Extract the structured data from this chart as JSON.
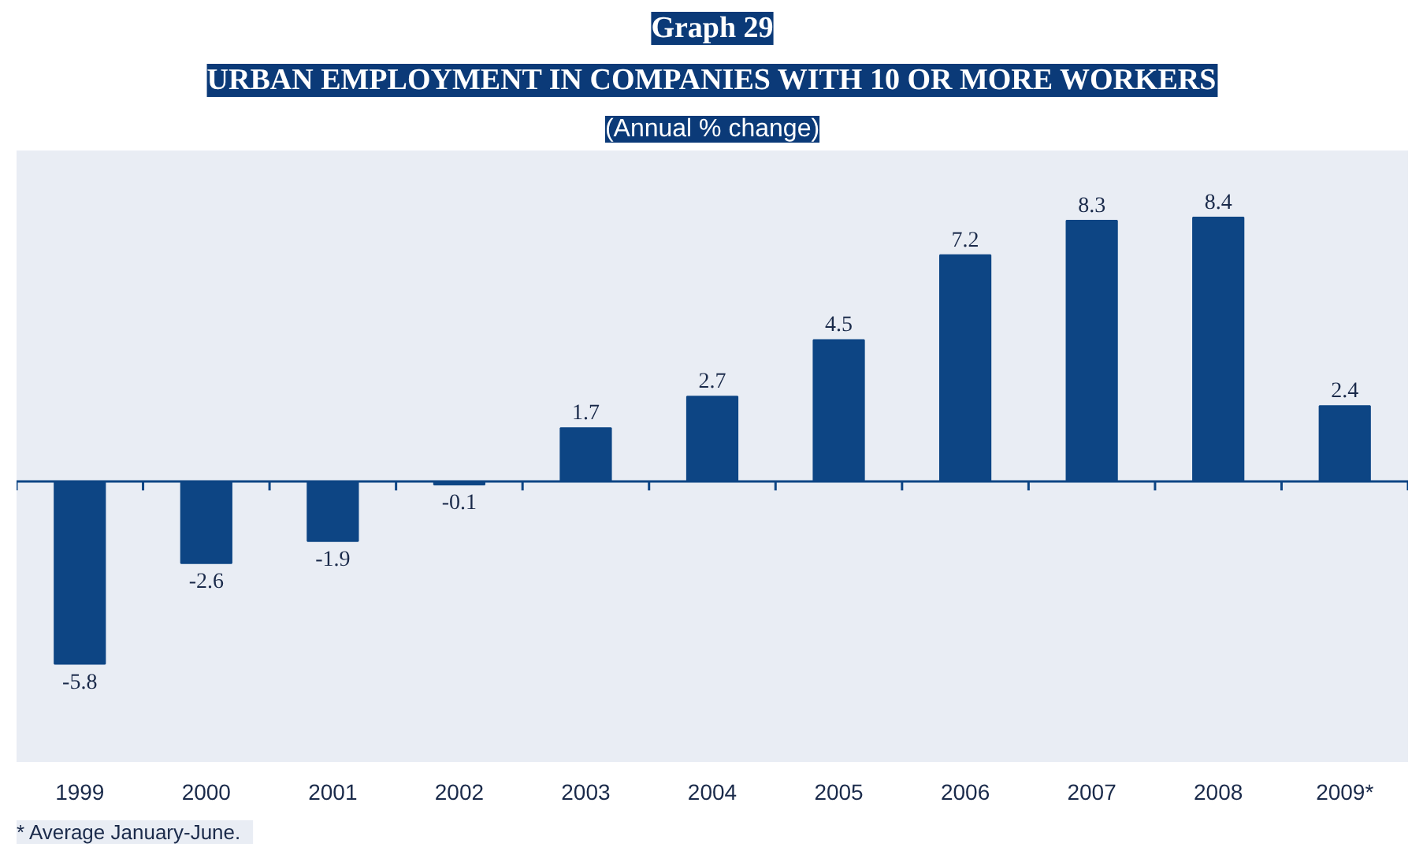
{
  "chart_data": {
    "type": "bar",
    "title": "Graph 29",
    "subtitle": "URBAN EMPLOYMENT IN COMPANIES WITH 10 OR MORE WORKERS",
    "ylabel": "(Annual % change)",
    "categories": [
      "1999",
      "2000",
      "2001",
      "2002",
      "2003",
      "2004",
      "2005",
      "2006",
      "2007",
      "2008",
      "2009*"
    ],
    "values": [
      -5.8,
      -2.6,
      -1.9,
      -0.1,
      1.7,
      2.7,
      4.5,
      7.2,
      8.3,
      8.4,
      2.4
    ],
    "color": "#0d4584",
    "data_labels": true,
    "grid": false,
    "ref_lines": [
      {
        "axis": "y",
        "value": 0,
        "color": "#0d4584"
      }
    ],
    "annotations": [
      "*   Average January-June."
    ]
  }
}
